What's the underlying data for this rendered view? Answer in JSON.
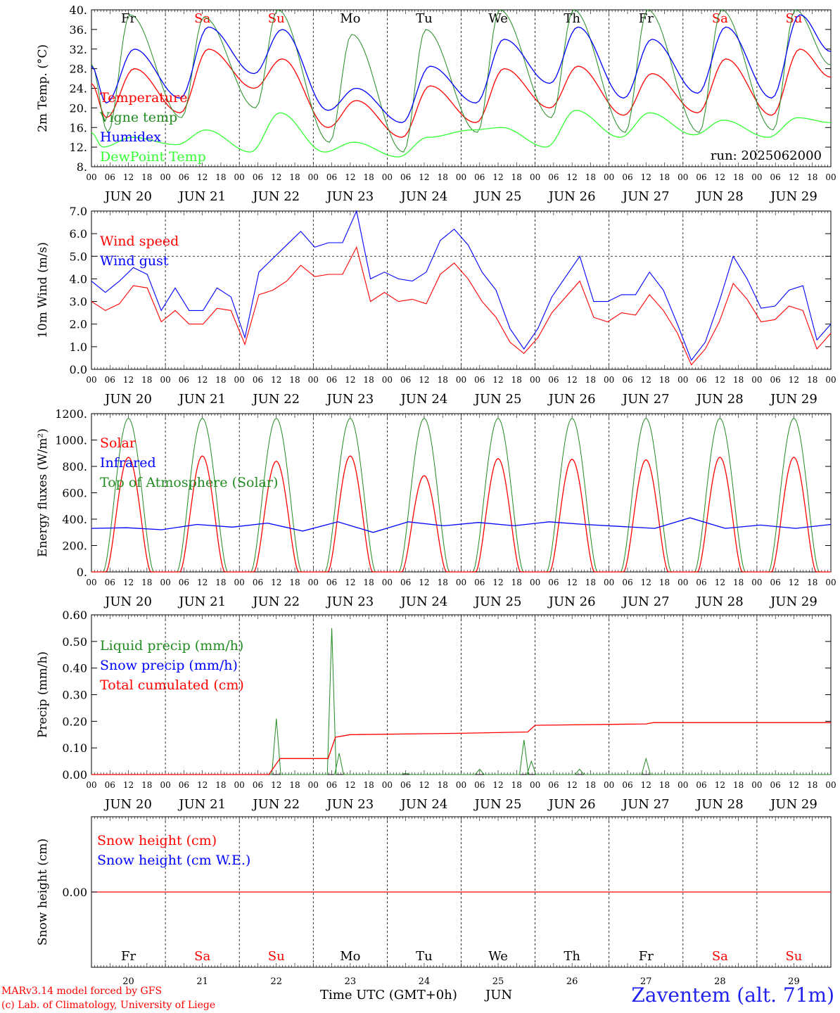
{
  "run_label": "run: 2025062000",
  "footer": {
    "credit_line1": "MARv3.14 model forced by GFS",
    "credit_line2": "(c) Lab. of Climatology, University of Liege",
    "x_axis_label": "Time UTC (GMT+0h)",
    "month_label": "JUN",
    "station": "Zaventem (alt. 71m)"
  },
  "days": [
    "JUN 20",
    "JUN 21",
    "JUN 22",
    "JUN 23",
    "JUN 24",
    "JUN 25",
    "JUN 26",
    "JUN 27",
    "JUN 28",
    "JUN 29"
  ],
  "day_numbers": [
    "20",
    "21",
    "22",
    "23",
    "24",
    "25",
    "26",
    "27",
    "28",
    "29"
  ],
  "weekdays": [
    "Fr",
    "Sa",
    "Su",
    "Mo",
    "Tu",
    "We",
    "Th",
    "Fr",
    "Sa",
    "Su"
  ],
  "weekend_color": "#ff0000",
  "weekday_color": "#000000",
  "hour_ticks": [
    "00",
    "06",
    "12",
    "18"
  ],
  "last_hour_tick": "00",
  "chart_data": [
    {
      "id": "temperature",
      "type": "line",
      "ylabel": "2m Temp. (°C)",
      "ylim": [
        8,
        40
      ],
      "yticks": [
        "8.",
        "12.",
        "16.",
        "20.",
        "24.",
        "28.",
        "32.",
        "36.",
        "40."
      ],
      "hgrid": [],
      "legend_position": "left",
      "series": [
        {
          "name": "Temperature",
          "color": "#ff0000",
          "max": [
            28,
            32,
            30,
            21.5,
            24.5,
            28,
            28.5,
            27,
            30,
            32
          ],
          "min": [
            18,
            19,
            24,
            16,
            14,
            17,
            20,
            18.5,
            19,
            18.5
          ]
        },
        {
          "name": "Vigne temp",
          "color": "#228b22",
          "max": [
            39,
            38.5,
            40,
            35,
            36,
            40,
            40,
            40,
            40,
            40
          ],
          "min": [
            15,
            18,
            20,
            13,
            11,
            15,
            18,
            15,
            15,
            15.5
          ]
        },
        {
          "name": "Humidex",
          "color": "#0000ff",
          "max": [
            32,
            36.5,
            36,
            24,
            28.5,
            34,
            36.5,
            34,
            36.5,
            39
          ],
          "min": [
            21,
            22,
            27,
            19.5,
            17,
            21,
            25,
            22,
            23,
            22
          ]
        },
        {
          "name": "DewPoint Temp",
          "color": "#33ff33",
          "max": [
            14,
            15.5,
            19,
            13,
            14,
            16,
            19.5,
            19,
            17.5,
            18
          ],
          "min": [
            12,
            12.5,
            11,
            11,
            10,
            15.5,
            12,
            14,
            14.5,
            14
          ]
        }
      ]
    },
    {
      "id": "wind",
      "type": "line",
      "ylabel": "10m Wind (m/s)",
      "ylim": [
        0,
        7
      ],
      "yticks": [
        "0.0",
        "1.0",
        "2.0",
        "3.0",
        "4.0",
        "5.0",
        "6.0",
        "7.0"
      ],
      "hgrid": [
        5
      ],
      "legend_position": "left",
      "series": [
        {
          "name": "Wind speed",
          "color": "#ff0000",
          "values": [
            3.0,
            2.6,
            2.9,
            3.7,
            3.6,
            2.1,
            2.6,
            2.0,
            2.0,
            2.7,
            2.6,
            1.1,
            3.3,
            3.5,
            3.9,
            4.6,
            4.1,
            4.2,
            4.2,
            5.4,
            3.0,
            3.4,
            3.0,
            3.1,
            2.9,
            4.2,
            4.7,
            4.0,
            3.0,
            2.3,
            1.2,
            0.7,
            1.4,
            2.5,
            3.2,
            3.9,
            2.3,
            2.1,
            2.5,
            2.4,
            3.3,
            2.6,
            1.6,
            0.2,
            0.9,
            2.1,
            3.8,
            3.1,
            2.1,
            2.2,
            2.8,
            2.6,
            0.9,
            1.6
          ]
        },
        {
          "name": "Wind gust",
          "color": "#0000ff",
          "values": [
            3.9,
            3.4,
            3.9,
            4.5,
            4.2,
            2.6,
            3.6,
            2.6,
            2.6,
            3.6,
            3.2,
            1.4,
            4.3,
            4.9,
            5.5,
            6.1,
            5.4,
            5.6,
            5.6,
            7.0,
            4.0,
            4.3,
            4.0,
            3.9,
            4.3,
            5.7,
            6.2,
            5.5,
            4.3,
            3.5,
            1.8,
            0.9,
            1.8,
            3.2,
            4.1,
            5.0,
            3.0,
            3.0,
            3.3,
            3.3,
            4.3,
            3.5,
            2.0,
            0.4,
            1.2,
            3.0,
            5.0,
            4.0,
            2.7,
            2.8,
            3.5,
            3.7,
            1.3,
            2.0
          ]
        }
      ]
    },
    {
      "id": "energy",
      "type": "line",
      "ylabel": "Energy fluxes (W/m²)",
      "ylim": [
        0,
        1200
      ],
      "yticks": [
        "0.",
        "200.",
        "400.",
        "600.",
        "800.",
        "1000.",
        "1200."
      ],
      "hgrid": [],
      "legend_position": "left",
      "series": [
        {
          "name": "Solar",
          "color": "#ff0000",
          "daily_peak": [
            870,
            880,
            840,
            880,
            730,
            860,
            855,
            850,
            870,
            870
          ]
        },
        {
          "name": "Infrared",
          "color": "#0000ff",
          "values": [
            330,
            335,
            320,
            360,
            340,
            370,
            310,
            380,
            300,
            380,
            350,
            375,
            350,
            380,
            360,
            345,
            330,
            410,
            330,
            355,
            330,
            360
          ]
        },
        {
          "name": "Top of Atmosphere (Solar)",
          "color": "#228b22",
          "daily_peak": [
            1165,
            1165,
            1165,
            1165,
            1165,
            1165,
            1165,
            1165,
            1165,
            1165
          ]
        }
      ]
    },
    {
      "id": "precip",
      "type": "line",
      "ylabel": "Precip (mm/h)",
      "ylim": [
        0,
        0.6
      ],
      "yticks": [
        "0.00",
        "0.10",
        "0.20",
        "0.30",
        "0.40",
        "0.50",
        "0.60"
      ],
      "hgrid": [],
      "legend_position": "left",
      "series": [
        {
          "name": "Liquid precip (mm/h)",
          "color": "#228b22",
          "events": [
            [
              2.5,
              0.21
            ],
            [
              3.25,
              0.55
            ],
            [
              3.35,
              0.08
            ],
            [
              4.25,
              0.005
            ],
            [
              5.25,
              0.02
            ],
            [
              5.85,
              0.13
            ],
            [
              5.95,
              0.05
            ],
            [
              6.6,
              0.02
            ],
            [
              7.5,
              0.06
            ]
          ]
        },
        {
          "name": "Snow precip (mm/h)",
          "color": "#0000ff",
          "values": []
        },
        {
          "name": "Total cumulated (cm)",
          "color": "#ff0000",
          "values": [
            [
              0,
              0
            ],
            [
              2.4,
              0
            ],
            [
              2.55,
              0.06
            ],
            [
              3.2,
              0.06
            ],
            [
              3.3,
              0.14
            ],
            [
              3.5,
              0.15
            ],
            [
              5.0,
              0.155
            ],
            [
              5.9,
              0.16
            ],
            [
              6.0,
              0.185
            ],
            [
              7.5,
              0.19
            ],
            [
              7.6,
              0.195
            ],
            [
              10,
              0.195
            ]
          ]
        }
      ]
    },
    {
      "id": "snow",
      "type": "line",
      "ylabel": "Snow height (cm)",
      "yticks": [
        "0.00"
      ],
      "hgrid": [],
      "legend_position": "left",
      "series": [
        {
          "name": "Snow height (cm)",
          "color": "#ff0000",
          "values": [
            0,
            0
          ]
        },
        {
          "name": "Snow height (cm W.E.)",
          "color": "#0000ff",
          "values": [
            0,
            0
          ]
        }
      ]
    }
  ]
}
